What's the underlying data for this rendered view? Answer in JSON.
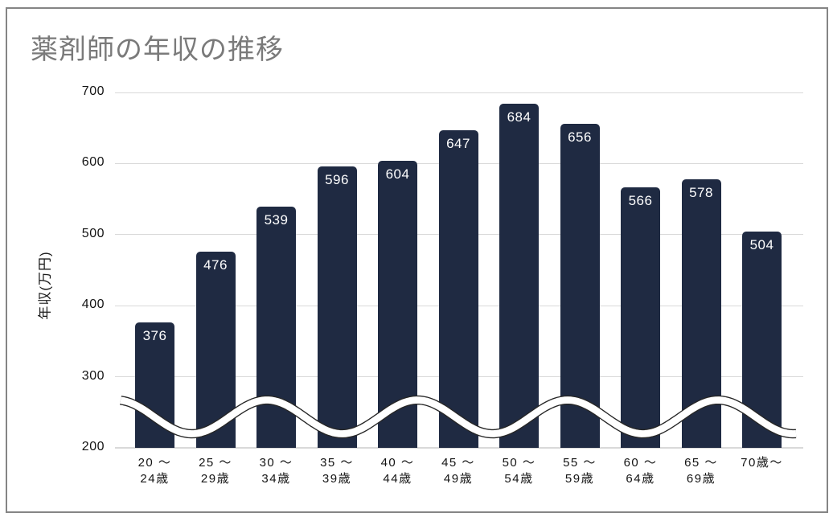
{
  "title": "薬剤師の年収の推移",
  "chart_data": {
    "type": "bar",
    "title": "薬剤師の年収の推移",
    "ylabel": "年収(万円)",
    "xlabel": "",
    "categories": [
      [
        "20 ～",
        "24歳"
      ],
      [
        "25 ～",
        "29歳"
      ],
      [
        "30 ～",
        "34歳"
      ],
      [
        "35 ～",
        "39歳"
      ],
      [
        "40 ～",
        "44歳"
      ],
      [
        "45 ～",
        "49歳"
      ],
      [
        "50 ～",
        "54歳"
      ],
      [
        "55 ～",
        "59歳"
      ],
      [
        "60 ～",
        "64歳"
      ],
      [
        "65 ～",
        "69歳"
      ],
      [
        "70歳～"
      ]
    ],
    "values": [
      376,
      476,
      539,
      596,
      604,
      647,
      684,
      656,
      566,
      578,
      504
    ],
    "y_ticks": [
      200,
      300,
      400,
      500,
      600,
      700
    ],
    "ylim": [
      200,
      700
    ],
    "grid": true,
    "axis_break_wave": true,
    "colors": {
      "bar": "#1f2a42",
      "value_label": "#ffffff",
      "gridline": "#d9d9d9",
      "axis_text": "#141414",
      "title_text": "#7a7a7a",
      "frame_border": "#858585",
      "wave_core": "#ffffff",
      "wave_outline": "#262626"
    }
  }
}
